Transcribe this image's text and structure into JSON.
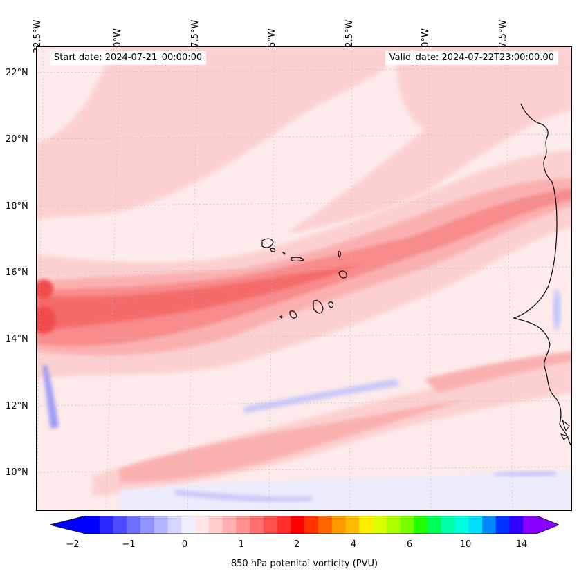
{
  "map": {
    "lon_labels": [
      "32.5°W",
      "30°W",
      "27.5°W",
      "25°W",
      "22.5°W",
      "20°W",
      "17.5°W"
    ],
    "lat_labels": [
      "22°N",
      "20°N",
      "18°N",
      "16°N",
      "14°N",
      "12°N",
      "10°N"
    ],
    "start_date": "Start date: 2024-07-21_00:00:00",
    "valid_date": "Valid_date: 2024-07-22T23:00:00.00",
    "colorbar_label": "850 hPa potenital vorticity (PVU)",
    "colorbar_ticks": [
      "−2",
      "−1",
      "0",
      "1",
      "2",
      "4",
      "6",
      "10",
      "14"
    ],
    "colors": {
      "pale_pink": "#fdeaea",
      "light_pink": "#fcd0d0",
      "mid_pink": "#fbb0b0",
      "salmon": "#f88c8c",
      "red": "#f46a6a",
      "strong_red": "#f04b4b",
      "pale_blue": "#ececfc",
      "light_blue": "#c8c8fa",
      "mid_blue": "#9c9cf4",
      "coast": "#000000"
    },
    "colorbar_colors": [
      "#0000ff",
      "#2a2aff",
      "#4d4dff",
      "#7070ff",
      "#9393ff",
      "#b4b4ff",
      "#d6d6ff",
      "#eeeeff",
      "#ffe6e6",
      "#ffcccc",
      "#ffb0b0",
      "#ff9090",
      "#ff7070",
      "#ff5050",
      "#ff2d2d",
      "#ff0000",
      "#ff3300",
      "#ff6600",
      "#ff9900",
      "#ffbb00",
      "#ffee00",
      "#ddff00",
      "#aaff00",
      "#77ff00",
      "#22ff00",
      "#00ff55",
      "#00ffaa",
      "#00ffdd",
      "#00ddff",
      "#0088ff",
      "#0033ff",
      "#3300ff",
      "#8800ff"
    ]
  }
}
